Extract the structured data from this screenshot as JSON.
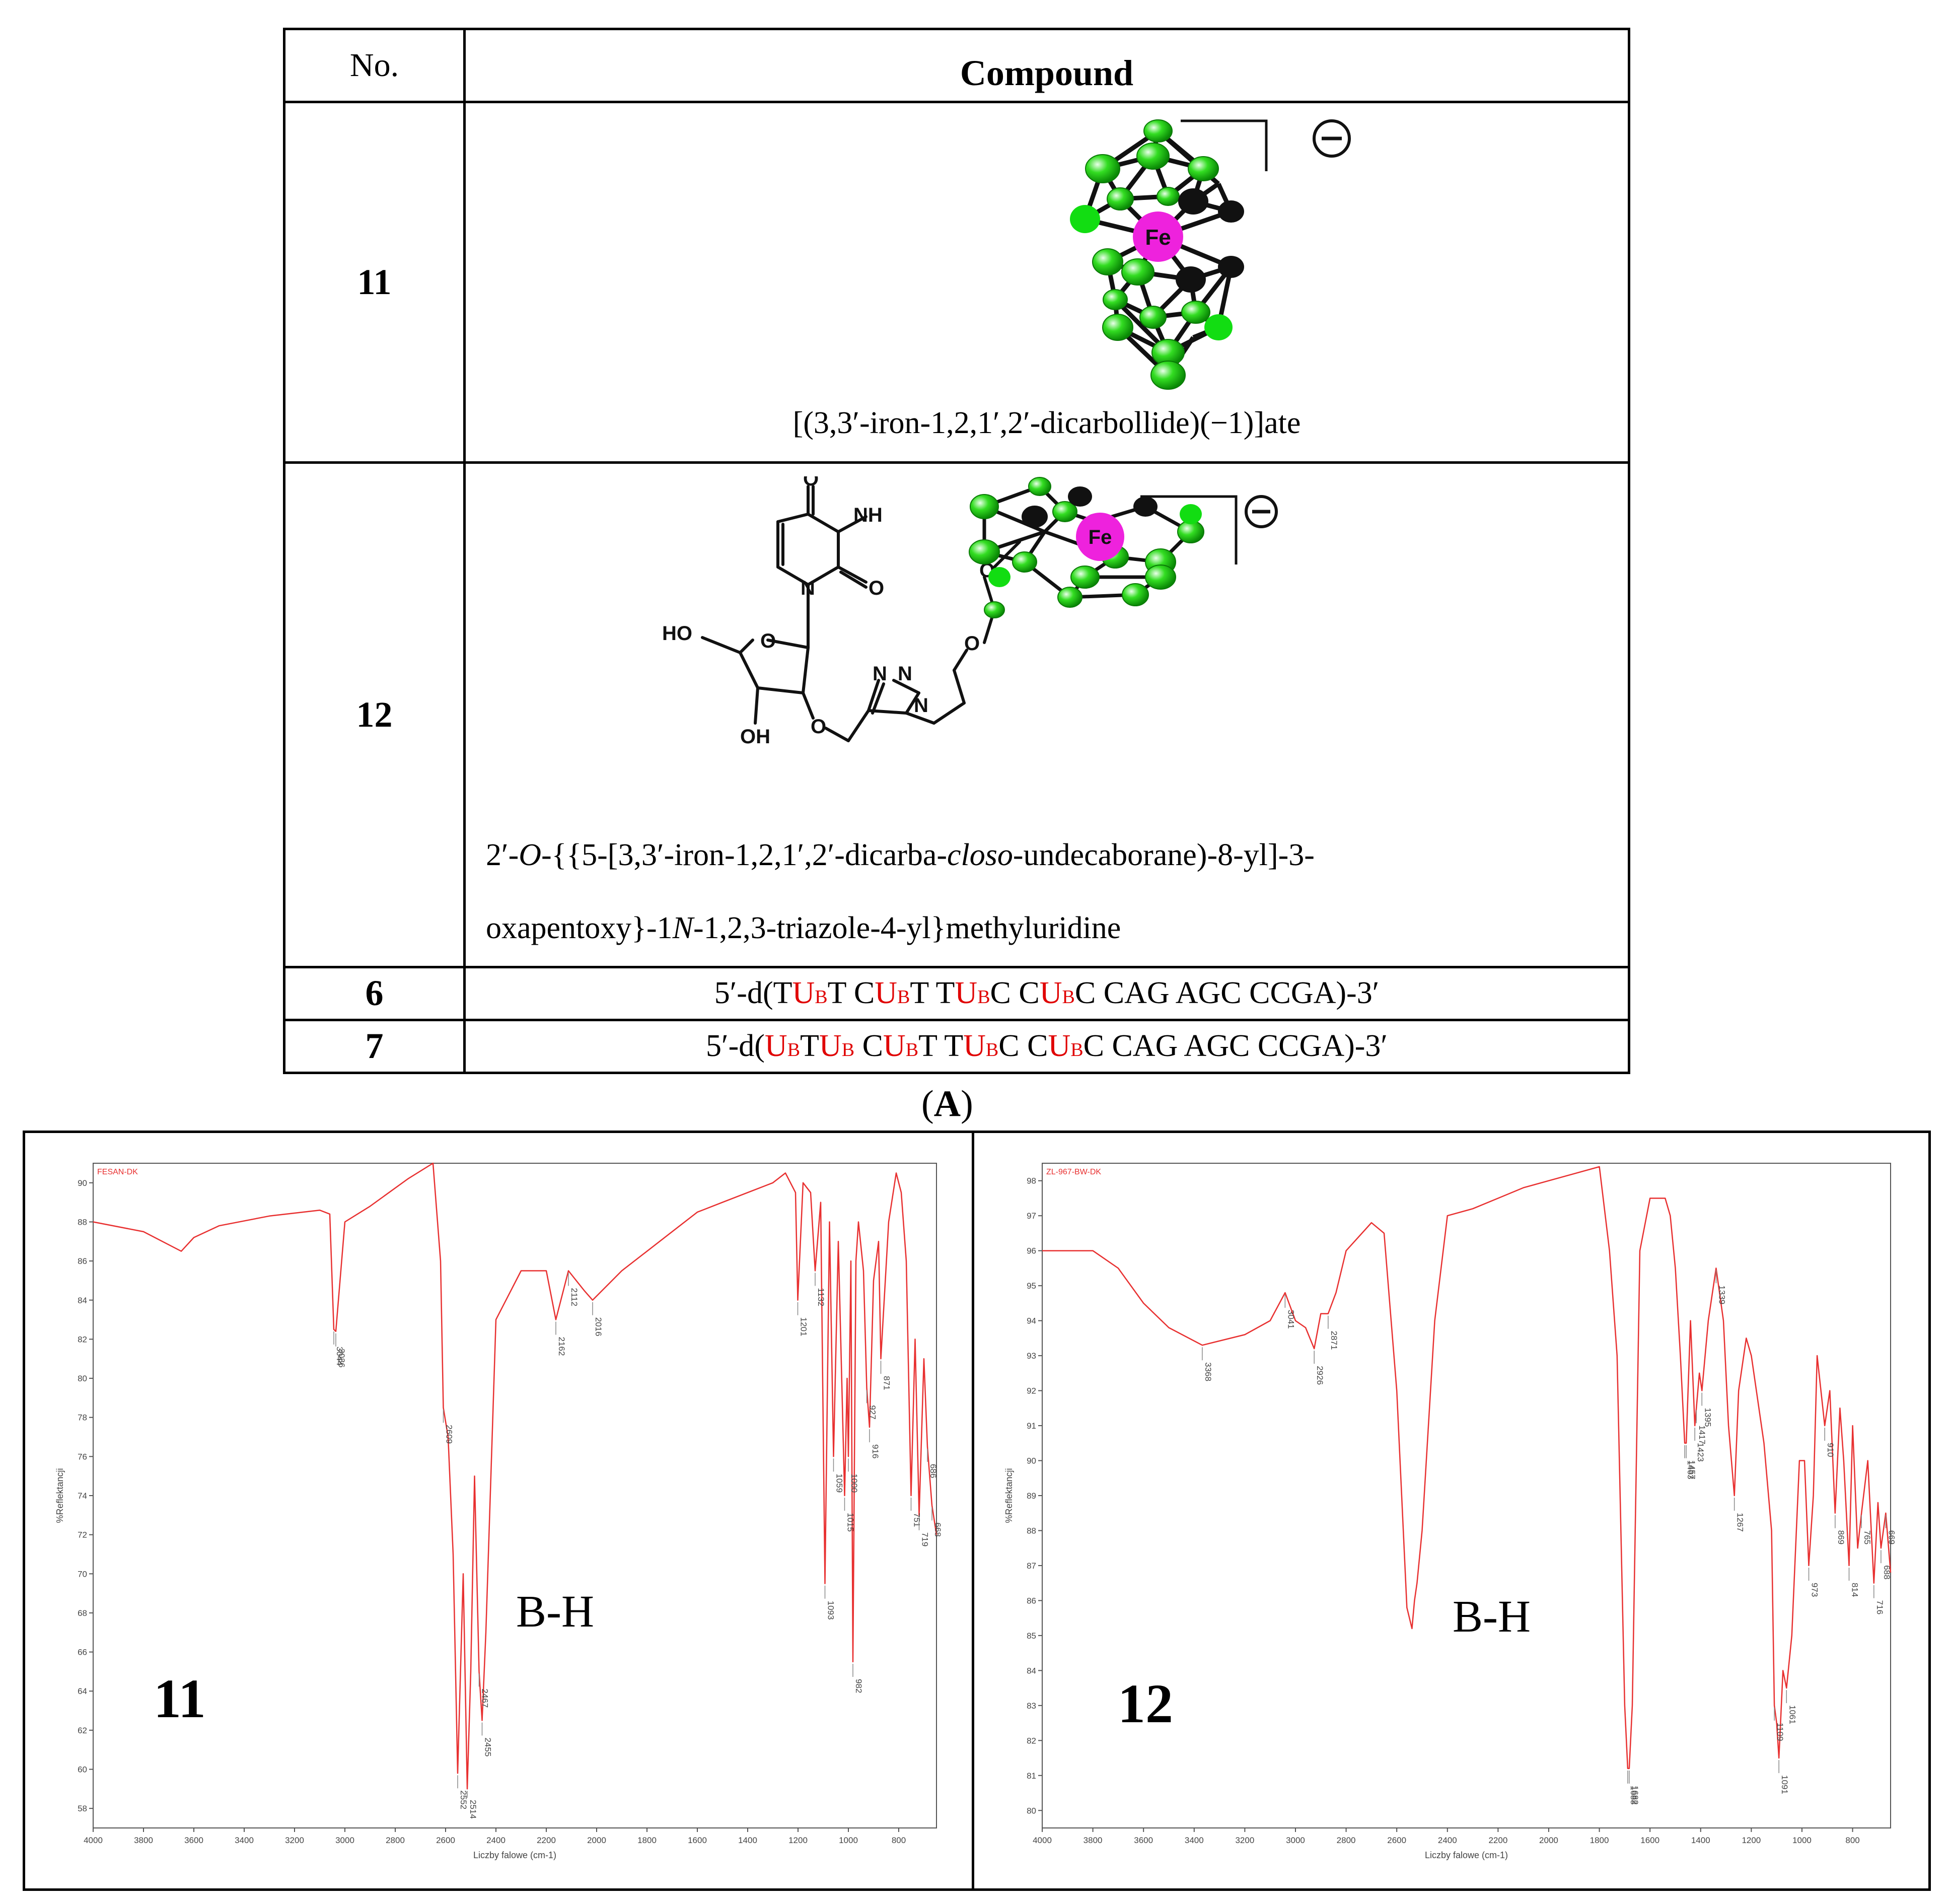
{
  "table": {
    "header_no": "No.",
    "header_compound": "Compound",
    "rows": [
      {
        "no": "11",
        "name": "[(3,3′-iron-1,2,1′,2′-dicarbollide)(−1)]ate"
      },
      {
        "no": "12",
        "name_line1_a": "2′-",
        "name_line1_b": "O",
        "name_line1_c": "-{{5-[3,3′-iron-1,2,1′,2′-dicarba-",
        "name_line1_d": "closo",
        "name_line1_e": "-undecaborane)-8-yl]-3-",
        "name_line2_a": "oxapentoxy}-1",
        "name_line2_b": "N",
        "name_line2_c": "-1,2,3-triazole-4-yl}methyluridine"
      },
      {
        "no": "6"
      },
      {
        "no": "7"
      }
    ]
  },
  "sequences": {
    "seq6": {
      "prefix": "5′-d(",
      "suffix": "C CAG AGC CCGA)-3′"
    },
    "seq7": {
      "prefix": "5′-d(",
      "suffix": "C CAG AGC CCGA)-3′"
    },
    "u": "U",
    "b": "B",
    "t": "T",
    "c": "C",
    "sp": " "
  },
  "structure_labels": {
    "fe": "Fe",
    "anion": "⊖",
    "ho": "HO",
    "oh": "OH",
    "nh": "NH",
    "n": "N",
    "o": "O"
  },
  "panel_label": {
    "open": "(",
    "letter": "A",
    "close": ")"
  },
  "spectra": {
    "left": {
      "file": "FESAN-DK",
      "compound": "11",
      "band": "B-H",
      "ylabel": "%Reflektancji",
      "xlabel": "Liczby falowe (cm-1)",
      "peaks": [
        "3044",
        "3036",
        "2609",
        "2552",
        "2514",
        "2467",
        "2455",
        "2162",
        "2112",
        "2016",
        "1201",
        "1132",
        "1093",
        "1059",
        "1015",
        "1000",
        "982",
        "927",
        "916",
        "871",
        "751",
        "719",
        "686",
        "668"
      ]
    },
    "right": {
      "file": "ZL-967-BW-DK",
      "compound": "12",
      "band": "B-H",
      "ylabel": "%Reflektancji",
      "xlabel": "Liczby falowe (cm-1)",
      "peaks": [
        "3368",
        "3041",
        "2926",
        "2871",
        "1688",
        "1682",
        "1463",
        "1457",
        "1423",
        "1417",
        "1395",
        "1339",
        "1267",
        "1109",
        "1091",
        "1061",
        "973",
        "910",
        "869",
        "814",
        "765",
        "716",
        "688",
        "669"
      ]
    }
  },
  "chart_data": [
    {
      "type": "line",
      "title": "FESAN-DK",
      "xlabel": "Liczby falowe (cm-1)",
      "ylabel": "%Reflektancji",
      "xlim": [
        4000,
        650
      ],
      "ylim": [
        57,
        91
      ],
      "xticks": [
        4000,
        3800,
        3600,
        3400,
        3200,
        3000,
        2800,
        2600,
        2400,
        2200,
        2000,
        1800,
        1600,
        1400,
        1200,
        1000,
        800
      ],
      "yticks": [
        58,
        60,
        62,
        64,
        66,
        68,
        70,
        72,
        74,
        76,
        78,
        80,
        82,
        84,
        86,
        88,
        90
      ],
      "series": [
        {
          "color": "#e83030",
          "x": [
            4000,
            3800,
            3650,
            3600,
            3500,
            3300,
            3100,
            3060,
            3044,
            3036,
            3000,
            2900,
            2750,
            2650,
            2620,
            2609,
            2590,
            2570,
            2552,
            2530,
            2514,
            2500,
            2485,
            2467,
            2455,
            2440,
            2400,
            2300,
            2200,
            2162,
            2112,
            2050,
            2016,
            1900,
            1800,
            1700,
            1600,
            1500,
            1400,
            1300,
            1250,
            1210,
            1201,
            1180,
            1150,
            1132,
            1110,
            1093,
            1075,
            1059,
            1040,
            1015,
            1005,
            1000,
            990,
            982,
            970,
            960,
            940,
            927,
            916,
            900,
            880,
            871,
            840,
            810,
            790,
            770,
            751,
            735,
            719,
            700,
            686,
            668,
            650
          ],
          "y": [
            88,
            87.5,
            86.5,
            87.2,
            87.8,
            88.3,
            88.6,
            88.4,
            82.5,
            82.4,
            88,
            88.8,
            90.2,
            91,
            86,
            78.5,
            77,
            71,
            59.8,
            70,
            59,
            65,
            75,
            65,
            62.5,
            67,
            83,
            85.5,
            85.5,
            83,
            85.5,
            84.5,
            84,
            85.5,
            86.5,
            87.5,
            88.5,
            89,
            89.5,
            90,
            90.5,
            89.5,
            84,
            90,
            89.5,
            85.5,
            89,
            69.5,
            88,
            76,
            87,
            74,
            80,
            76,
            86,
            65.5,
            86,
            88,
            85.5,
            79.5,
            77.5,
            85,
            87,
            81,
            88,
            90.5,
            89.5,
            86,
            74,
            82,
            73,
            81,
            76.5,
            73.5,
            72
          ]
        }
      ],
      "annotations": [
        "11",
        "B-H"
      ]
    },
    {
      "type": "line",
      "title": "ZL-967-BW-DK",
      "xlabel": "Liczby falowe (cm-1)",
      "ylabel": "%Reflektancji",
      "xlim": [
        4000,
        650
      ],
      "ylim": [
        79.5,
        98.5
      ],
      "xticks": [
        4000,
        3800,
        3600,
        3400,
        3200,
        3000,
        2800,
        2600,
        2400,
        2200,
        2000,
        1800,
        1600,
        1400,
        1200,
        1000,
        800
      ],
      "yticks": [
        80,
        81,
        82,
        83,
        84,
        85,
        86,
        87,
        88,
        89,
        90,
        91,
        92,
        93,
        94,
        95,
        96,
        97,
        98
      ],
      "series": [
        {
          "color": "#e83030",
          "x": [
            4000,
            3900,
            3800,
            3700,
            3600,
            3500,
            3368,
            3200,
            3100,
            3041,
            3000,
            2960,
            2926,
            2900,
            2871,
            2840,
            2800,
            2700,
            2650,
            2600,
            2560,
            2540,
            2530,
            2520,
            2500,
            2450,
            2400,
            2300,
            2200,
            2100,
            2000,
            1900,
            1800,
            1760,
            1730,
            1700,
            1688,
            1682,
            1670,
            1640,
            1600,
            1540,
            1520,
            1500,
            1480,
            1463,
            1457,
            1440,
            1423,
            1417,
            1405,
            1395,
            1370,
            1339,
            1310,
            1290,
            1267,
            1250,
            1220,
            1200,
            1150,
            1120,
            1109,
            1100,
            1091,
            1075,
            1061,
            1040,
            1010,
            990,
            973,
            955,
            940,
            910,
            890,
            869,
            850,
            835,
            814,
            800,
            780,
            765,
            740,
            716,
            700,
            688,
            669,
            650
          ],
          "y": [
            96,
            96,
            96,
            95.5,
            94.5,
            93.8,
            93.3,
            93.6,
            94,
            94.8,
            94,
            93.8,
            93.2,
            94.2,
            94.2,
            94.8,
            96,
            96.8,
            96.5,
            92,
            85.8,
            85.2,
            86,
            86.5,
            88,
            94,
            97,
            97.2,
            97.5,
            97.8,
            98,
            98.2,
            98.4,
            96,
            93,
            83,
            81.2,
            81.2,
            83,
            96,
            97.5,
            97.5,
            97,
            95.5,
            93,
            90.5,
            90.5,
            94,
            91,
            91.5,
            92.5,
            92,
            94,
            95.5,
            94,
            91,
            89,
            92,
            93.5,
            93,
            90.5,
            88,
            83,
            82.5,
            81.5,
            84,
            83.5,
            85,
            90,
            90,
            87,
            89,
            93,
            91,
            92,
            88.5,
            91.5,
            90,
            87,
            91,
            87.5,
            88.5,
            90,
            86.5,
            88.8,
            87.5,
            88.5,
            86.8
          ]
        }
      ],
      "annotations": [
        "12",
        "B-H"
      ]
    }
  ]
}
